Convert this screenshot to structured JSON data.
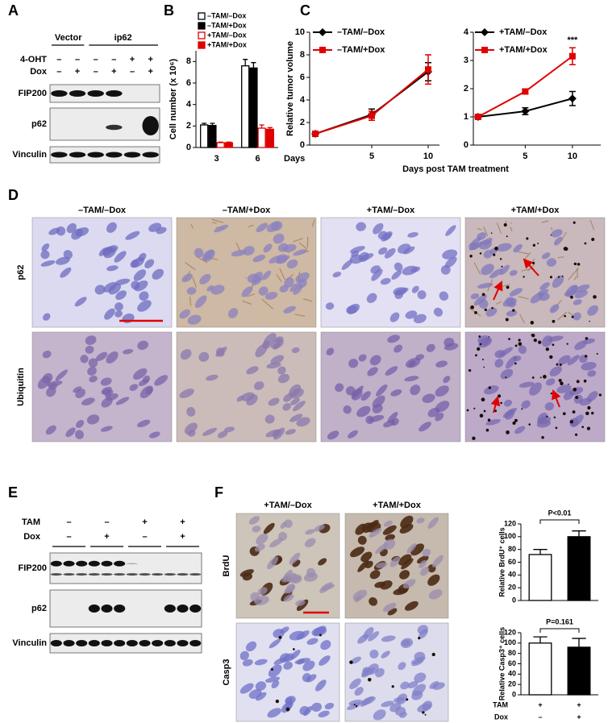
{
  "figure": {
    "panel_labels": {
      "a": "A",
      "b": "B",
      "c": "C",
      "d": "D",
      "e": "E",
      "f": "F"
    },
    "panel_a": {
      "groups": [
        "Vector",
        "ip62"
      ],
      "rows": [
        {
          "label": "4-OHT",
          "signs": [
            "–",
            "–",
            "–",
            "–",
            "+",
            "+"
          ]
        },
        {
          "label": "Dox",
          "signs": [
            "–",
            "+",
            "–",
            "+",
            "–",
            "+"
          ]
        }
      ],
      "blots": [
        "FIP200",
        "p62",
        "Vinculin"
      ]
    },
    "panel_d": {
      "columns": [
        "–TAM/–Dox",
        "–TAM/+Dox",
        "+TAM/–Dox",
        "+TAM/+Dox"
      ],
      "rows": [
        "p62",
        "Ubiquitin"
      ]
    },
    "panel_e": {
      "rows": [
        {
          "label": "TAM",
          "signs": [
            "–",
            "–",
            "+",
            "+"
          ]
        },
        {
          "label": "Dox",
          "signs": [
            "–",
            "+",
            "–",
            "+"
          ]
        }
      ],
      "blots": [
        "FIP200",
        "p62",
        "Vinculin"
      ]
    },
    "panel_f": {
      "columns": [
        "+TAM/–Dox",
        "+TAM/+Dox"
      ],
      "rows": [
        "BrdU",
        "Casp3"
      ]
    }
  },
  "chart_data": [
    {
      "type": "bar",
      "y_label": "Cell number (x 10⁶)",
      "x_label": "Days",
      "categories": [
        "3",
        "6"
      ],
      "ylim": [
        0,
        9
      ],
      "yticks": [
        0,
        2,
        4,
        6,
        8
      ],
      "series": [
        {
          "name": "–TAM/–Dox",
          "color": "#ffffff",
          "edge_color": "#000000",
          "values": [
            2.1,
            7.6
          ],
          "errors": [
            0.15,
            0.6
          ]
        },
        {
          "name": "–TAM/+Dox",
          "color": "#000000",
          "edge_color": "#000000",
          "values": [
            2.05,
            7.4
          ],
          "errors": [
            0.2,
            0.5
          ]
        },
        {
          "name": "+TAM/–Dox",
          "color": "#ffffff",
          "edge_color": "#e00000",
          "values": [
            0.45,
            1.8
          ],
          "errors": [
            0.05,
            0.3
          ]
        },
        {
          "name": "+TAM/+Dox",
          "color": "#e00000",
          "edge_color": "#e00000",
          "values": [
            0.45,
            1.7
          ],
          "errors": [
            0.05,
            0.15
          ]
        }
      ]
    },
    {
      "type": "line",
      "y_label": "Relative tumor volume",
      "x": [
        0,
        5,
        10
      ],
      "xlim": [
        -0.5,
        11
      ],
      "xticks": [
        5,
        10
      ],
      "ylim": [
        0,
        10
      ],
      "yticks": [
        0,
        2,
        4,
        6,
        8,
        10
      ],
      "series": [
        {
          "name": "–TAM/–Dox",
          "color": "#000000",
          "marker": "diamond",
          "values": [
            1,
            2.7,
            6.5
          ],
          "errors": [
            0.1,
            0.5,
            0.8
          ]
        },
        {
          "name": "–TAM/+Dox",
          "color": "#e00000",
          "marker": "square",
          "values": [
            1,
            2.6,
            6.7
          ],
          "errors": [
            0.1,
            0.4,
            1.3
          ]
        }
      ]
    },
    {
      "type": "line",
      "x_label": "Days post TAM treatment",
      "annotation": "***",
      "x": [
        0,
        5,
        10
      ],
      "xlim": [
        -0.5,
        13
      ],
      "xticks": [
        5,
        10
      ],
      "ylim": [
        0,
        4
      ],
      "yticks": [
        0,
        1,
        2,
        3,
        4
      ],
      "series": [
        {
          "name": "+TAM/–Dox",
          "color": "#000000",
          "marker": "diamond",
          "values": [
            1,
            1.2,
            1.65
          ],
          "errors": [
            0.05,
            0.12,
            0.25
          ]
        },
        {
          "name": "+TAM/+Dox",
          "color": "#e00000",
          "marker": "square",
          "values": [
            1,
            1.9,
            3.15
          ],
          "errors": [
            0.05,
            0.08,
            0.3
          ]
        }
      ]
    },
    {
      "type": "bar",
      "y_label": "Relative BrdU⁺ cells",
      "annotation": "P<0.01",
      "categories": [
        null,
        null
      ],
      "values": [
        72,
        100
      ],
      "errors": [
        8,
        9
      ],
      "colors": [
        "#ffffff",
        "#000000"
      ],
      "edge_color": "#000000",
      "ylim": [
        0,
        120
      ],
      "yticks": [
        0,
        20,
        40,
        60,
        80,
        100,
        120
      ]
    },
    {
      "type": "bar",
      "y_label": "Relative Casp3⁺ cells",
      "annotation": "P=0.161",
      "categories": [
        null,
        null
      ],
      "values": [
        100,
        92
      ],
      "errors": [
        12,
        17
      ],
      "colors": [
        "#ffffff",
        "#000000"
      ],
      "edge_color": "#000000",
      "ylim": [
        0,
        120
      ],
      "yticks": [
        0,
        20,
        40,
        60,
        80,
        100,
        120
      ],
      "conditions": [
        {
          "label": "TAM",
          "signs": [
            "+",
            "+"
          ]
        },
        {
          "label": "Dox",
          "signs": [
            "–",
            "+"
          ]
        }
      ]
    }
  ]
}
